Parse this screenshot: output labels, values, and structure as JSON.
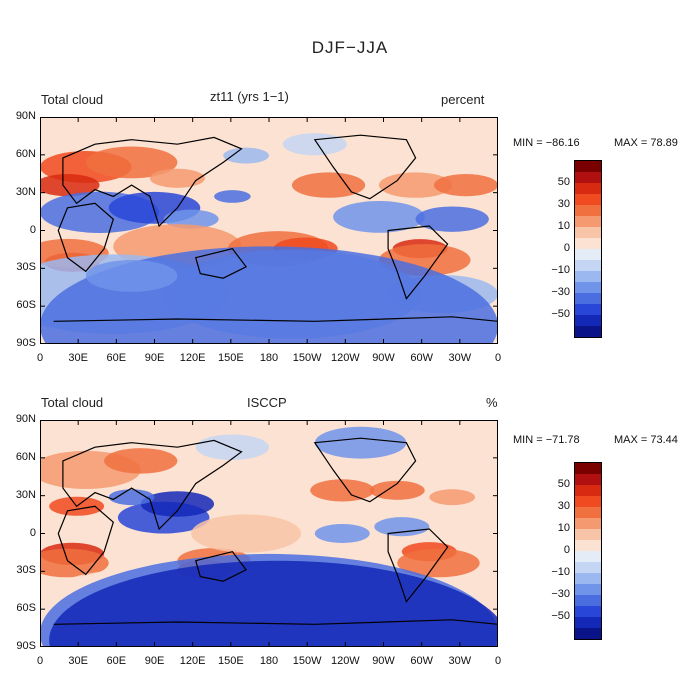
{
  "figure": {
    "title": "DJF−JJA"
  },
  "panels": [
    {
      "left_label": "Total cloud",
      "center_label": "zt11 (yrs 1−1)",
      "right_label": "percent",
      "min_text": "MIN = −86.16",
      "max_text": "MAX =  78.89"
    },
    {
      "left_label": "Total cloud",
      "center_label": "ISCCP",
      "right_label": "%",
      "min_text": "MIN = −71.78",
      "max_text": "MAX =  73.44"
    }
  ],
  "axes": {
    "lat_ticks": [
      "90N",
      "60N",
      "30N",
      "0",
      "30S",
      "60S",
      "90S"
    ],
    "lon_ticks": [
      "0",
      "30E",
      "60E",
      "90E",
      "120E",
      "150E",
      "180",
      "150W",
      "120W",
      "90W",
      "60W",
      "30W",
      "0"
    ]
  },
  "colorbar": {
    "labels": [
      "50",
      "30",
      "10",
      "0",
      "−10",
      "−30",
      "−50"
    ],
    "colors": [
      "#7a0000",
      "#b01010",
      "#d82a10",
      "#f04a20",
      "#f07040",
      "#f59a70",
      "#f8c4a8",
      "#fbe2d2",
      "#e4ecf8",
      "#c4d6f4",
      "#9cb8f0",
      "#7094ea",
      "#4a6ee0",
      "#2846d8",
      "#1428b8",
      "#0a1488"
    ]
  },
  "chart_data": {
    "type": "heatmap",
    "title": "DJF−JJA",
    "xlabel": "",
    "ylabel": "",
    "xlim": [
      0,
      360
    ],
    "ylim": [
      -90,
      90
    ],
    "note_units": [
      "percent",
      "%"
    ],
    "panels": [
      {
        "name": "zt11 (yrs 1−1)",
        "min": -86.16,
        "max": 78.89
      },
      {
        "name": "ISCCP",
        "min": -71.78,
        "max": 73.44
      }
    ]
  }
}
